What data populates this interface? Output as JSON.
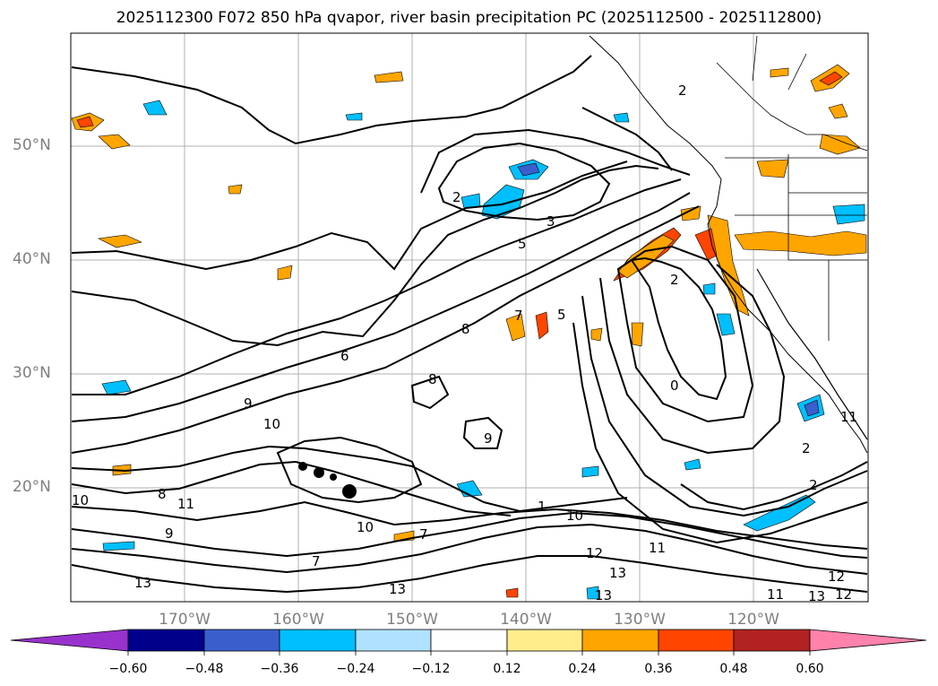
{
  "title": "2025112300 F072 850 hPa qvapor, river basin precipitation PC (2025112500 - 2025112800)",
  "lat_labels": [
    "50°N",
    "40°N",
    "30°N",
    "20°N"
  ],
  "lon_labels": [
    "170°W",
    "160°W",
    "150°W",
    "140°W",
    "130°W",
    "120°W"
  ],
  "contour_labels": [
    "2",
    "2",
    "2",
    "2",
    "2",
    "3",
    "5",
    "5",
    "6",
    "7",
    "7",
    "7",
    "8",
    "8",
    "8",
    "9",
    "9",
    "9",
    "10",
    "10",
    "10",
    "10",
    "11",
    "11",
    "11",
    "11",
    "12",
    "12",
    "12",
    "13",
    "13",
    "13",
    "13",
    "13",
    "1",
    "0"
  ],
  "colorbar": {
    "colors": [
      "#9932cc",
      "#00008b",
      "#3a5fcd",
      "#00bfff",
      "#b0e2ff",
      "#ffffff",
      "#ffec8b",
      "#ffa500",
      "#ff4500",
      "#b22222",
      "#ff82ab"
    ],
    "tick_labels": [
      "−0.60",
      "−0.48",
      "−0.36",
      "−0.24",
      "−0.12",
      "0.12",
      "0.24",
      "0.36",
      "0.48",
      "0.60"
    ]
  },
  "legend_colors": {
    "warm_light": "#ffa500",
    "warm_dark": "#ff4500",
    "cool_light": "#00bfff",
    "cool_dark": "#3a5fcd"
  }
}
